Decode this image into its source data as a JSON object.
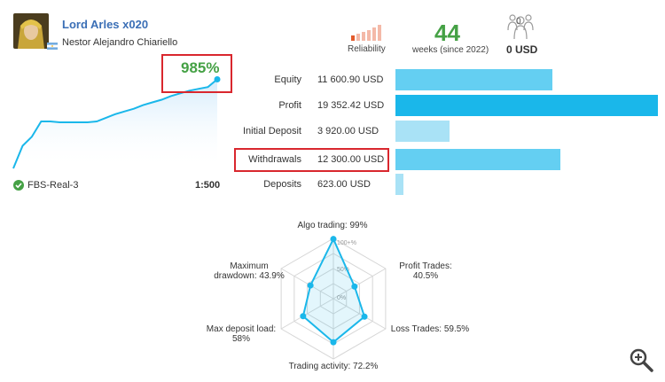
{
  "signal": {
    "name": "Lord Arles x020",
    "author": "Nestor Alejandro Chiariello",
    "reliability_label": "Reliability",
    "weeks": "44",
    "weeks_label": "weeks (since 2022)",
    "subscribers_count": "0",
    "subscribers_funds": "0 USD",
    "growth": "985%",
    "broker": "FBS-Real-3",
    "leverage": "1:500"
  },
  "icons": {
    "avatar": "avatar-image",
    "flag": "argentina-flag-icon",
    "reliability": "signal-bars-icon",
    "subscribers": "people-icon",
    "broker_verified": "check-shield-icon",
    "zoom": "zoom-in-icon"
  },
  "colors": {
    "accent_blue": "#3b6fb6",
    "green": "#45a145",
    "highlight_red": "#d9272e",
    "bar_light": "#64cff2",
    "bar_strong": "#1ab7ea",
    "bar_pale": "#a9e2f6",
    "reliability_active": "#e35b2c",
    "reliability_inactive": "#f4b9a8"
  },
  "reliability_level": 0.2,
  "stats": [
    {
      "label": "Equity",
      "value": "11 600.90 USD",
      "fraction": 0.58,
      "color": "#64cff2"
    },
    {
      "label": "Profit",
      "value": "19 352.42 USD",
      "fraction": 0.97,
      "color": "#1ab7ea"
    },
    {
      "label": "Initial Deposit",
      "value": "3 920.00 USD",
      "fraction": 0.2,
      "color": "#a9e2f6"
    },
    {
      "label": "Withdrawals",
      "value": "12 300.00 USD",
      "fraction": 0.61,
      "color": "#64cff2"
    },
    {
      "label": "Deposits",
      "value": "623.00 USD",
      "fraction": 0.03,
      "color": "#a9e2f6"
    }
  ],
  "chart_data": [
    {
      "type": "area",
      "x": [
        0,
        1,
        2,
        3,
        4,
        5,
        6,
        7,
        8,
        9,
        10,
        11,
        12,
        13,
        14,
        15,
        16,
        17,
        18,
        19,
        20,
        21,
        22
      ],
      "values": [
        0,
        250,
        350,
        520,
        520,
        510,
        510,
        510,
        510,
        520,
        560,
        600,
        630,
        660,
        700,
        730,
        760,
        800,
        830,
        860,
        880,
        900,
        985
      ],
      "ylim": [
        0,
        1000
      ]
    },
    {
      "type": "radar",
      "tick_labels": [
        "100+%",
        "50%",
        "0%"
      ],
      "axes": [
        {
          "label": "Algo trading: 99%",
          "value": 99
        },
        {
          "label": "Profit Trades: 40.5%",
          "value": 40.5
        },
        {
          "label": "Loss Trades: 59.5%",
          "value": 59.5
        },
        {
          "label": "Trading activity: 72.2%",
          "value": 72.2
        },
        {
          "label": "Max deposit load: 58%",
          "value": 58
        },
        {
          "label": "Maximum drawdown: 43.9%",
          "value": 43.9
        }
      ]
    }
  ]
}
